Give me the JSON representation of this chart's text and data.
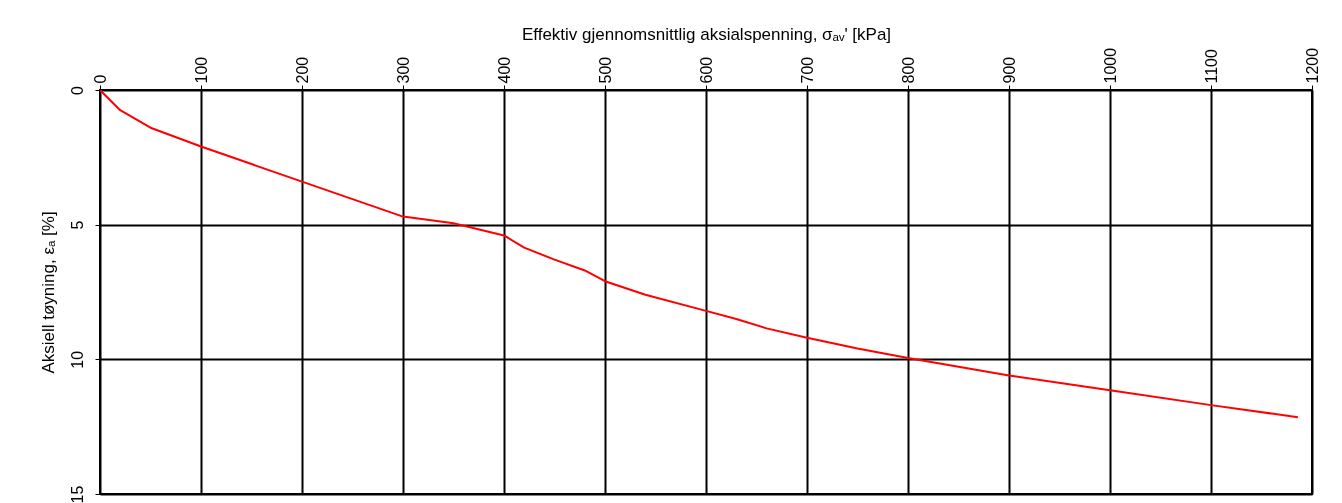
{
  "chart_data": {
    "type": "line",
    "xlabel": "Effektiv gjennomsnittlig aksialspenning, σₐᵥ'  [kPa]",
    "ylabel": "Aksiell tøyning, εₐ  [%]",
    "x": [
      0,
      20,
      50,
      100,
      150,
      200,
      250,
      300,
      350,
      400,
      420,
      450,
      480,
      500,
      540,
      600,
      630,
      660,
      700,
      750,
      800,
      900,
      1000,
      1100,
      1186
    ],
    "series": [
      {
        "color": "#ff0000",
        "values": [
          0,
          0.75,
          1.4,
          2.1,
          2.75,
          3.4,
          4.05,
          4.7,
          4.95,
          5.4,
          5.85,
          6.3,
          6.7,
          7.1,
          7.6,
          8.2,
          8.5,
          8.85,
          9.2,
          9.6,
          9.95,
          10.6,
          11.15,
          11.7,
          12.15
        ]
      }
    ],
    "xlim": [
      0,
      1200
    ],
    "xticks": [
      0,
      100,
      200,
      300,
      400,
      500,
      600,
      700,
      800,
      900,
      1000,
      1100,
      1200
    ],
    "ylim": [
      15,
      0
    ],
    "yticks": [
      0,
      5,
      10,
      15
    ],
    "grid": true,
    "line_style": "solid",
    "marker": "none"
  }
}
